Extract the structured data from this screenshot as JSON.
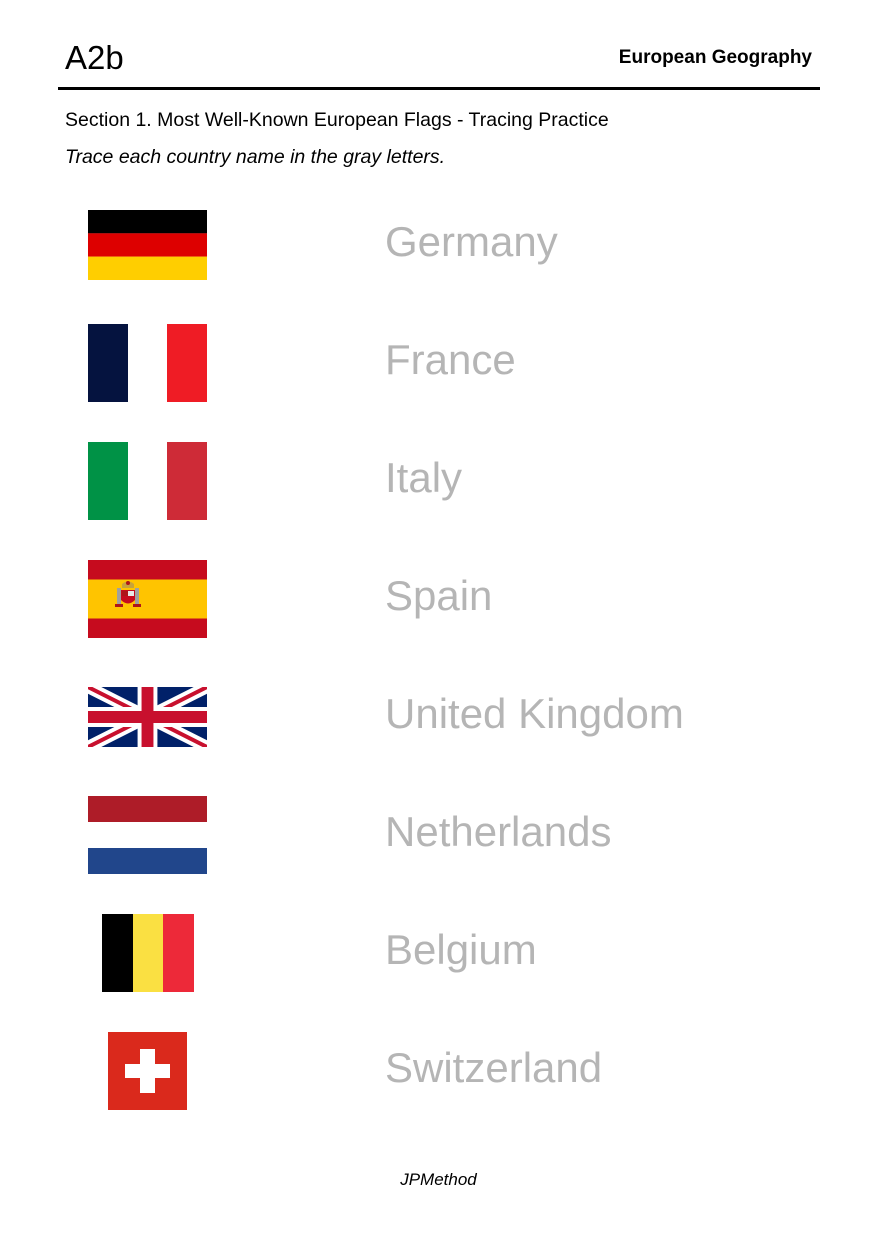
{
  "header": {
    "level": "A2b",
    "subject": "European Geography"
  },
  "section": {
    "title": "Section 1. Most Well-Known European Flags - Tracing Practice",
    "instruction": "Trace each country name in the gray letters."
  },
  "countries": [
    {
      "name": "Germany",
      "flag": "germany-flag"
    },
    {
      "name": "France",
      "flag": "france-flag"
    },
    {
      "name": "Italy",
      "flag": "italy-flag"
    },
    {
      "name": "Spain",
      "flag": "spain-flag"
    },
    {
      "name": "United Kingdom",
      "flag": "united-kingdom-flag"
    },
    {
      "name": "Netherlands",
      "flag": "netherlands-flag"
    },
    {
      "name": "Belgium",
      "flag": "belgium-flag"
    },
    {
      "name": "Switzerland",
      "flag": "switzerland-flag"
    }
  ],
  "colors": {
    "trace_text": "#b5b5b5"
  },
  "footer": {
    "brand": "JPMethod"
  }
}
